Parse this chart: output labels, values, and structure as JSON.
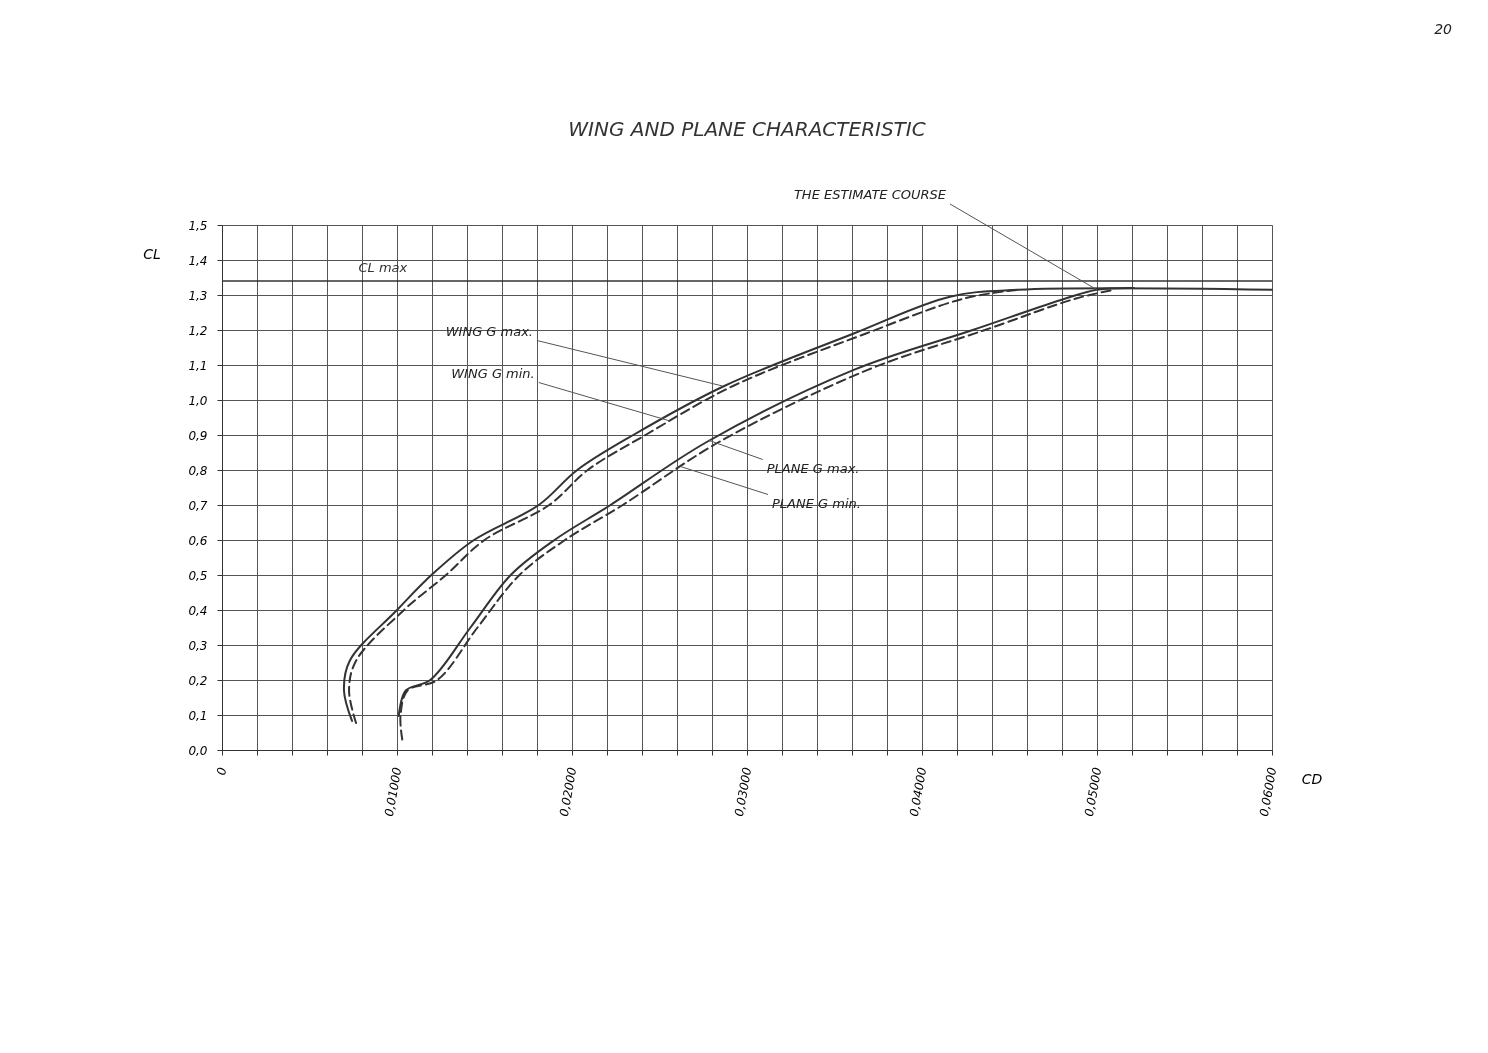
{
  "chart_data": {
    "type": "line",
    "title": "WING AND PLANE CHARACTERISTIC",
    "xlabel": "CD",
    "ylabel": "CL",
    "series": [
      {
        "color": "#333333",
        "line_style": "solid",
        "x": [
          0.00743,
          0.00697,
          0.0073,
          0.01,
          0.01206,
          0.0144,
          0.0181,
          0.0203,
          0.0235,
          0.0287,
          0.0361,
          0.0416,
          0.0455,
          0.06
        ],
        "values": [
          0.083,
          0.17,
          0.255,
          0.4,
          0.504,
          0.6,
          0.7,
          0.8,
          0.9,
          1.04,
          1.19,
          1.295,
          1.315,
          1.315
        ]
      },
      {
        "color": "#333333",
        "line_style": "dashed",
        "x": [
          0.00766,
          0.00726,
          0.00766,
          0.0104,
          0.0128,
          0.015,
          0.0187,
          0.0209,
          0.0242,
          0.0292,
          0.0368,
          0.0424,
          0.0455
        ],
        "values": [
          0.077,
          0.17,
          0.255,
          0.4,
          0.5,
          0.6,
          0.7,
          0.8,
          0.9,
          1.04,
          1.19,
          1.29,
          1.315
        ]
      },
      {
        "color": "#333333",
        "line_style": "solid",
        "x": [
          0.0101,
          0.0105,
          0.0119,
          0.0142,
          0.0165,
          0.019,
          0.0222,
          0.0277,
          0.0361,
          0.0429,
          0.0482,
          0.05,
          0.0521
        ],
        "values": [
          0.097,
          0.17,
          0.2,
          0.35,
          0.5,
          0.6,
          0.7,
          0.88,
          1.086,
          1.2,
          1.29,
          1.315,
          1.32
        ]
      },
      {
        "color": "#333333",
        "line_style": "dashed",
        "x": [
          0.0103,
          0.0102,
          0.0106,
          0.0123,
          0.0146,
          0.017,
          0.0196,
          0.0229,
          0.0284,
          0.0369,
          0.0436,
          0.0488,
          0.051
        ],
        "values": [
          0.03,
          0.097,
          0.17,
          0.2,
          0.35,
          0.5,
          0.6,
          0.7,
          0.88,
          1.086,
          1.2,
          1.29,
          1.315
        ]
      }
    ],
    "annotations": [
      {
        "text": "WING G max.",
        "x": 0.0286,
        "y": 1.04
      },
      {
        "text": "WING G min.",
        "x": 0.0256,
        "y": 0.94
      },
      {
        "text": "PLANE G max.",
        "x": 0.0278,
        "y": 0.885
      },
      {
        "text": "PLANE G min.",
        "x": 0.0262,
        "y": 0.81
      },
      {
        "text": "THE ESTIMATE COURSE",
        "x": 0.05,
        "y": 1.315
      },
      "20"
    ],
    "ref_lines": [
      {
        "axis": "y",
        "value": 1.34,
        "label": "CL max",
        "color": "#333333"
      }
    ],
    "xlim": [
      0,
      0.06
    ],
    "ylim": [
      0,
      1.5
    ],
    "xticks": [
      {
        "value": 0,
        "label": "0"
      },
      {
        "value": 0.002,
        "label": null
      },
      {
        "value": 0.004,
        "label": null
      },
      {
        "value": 0.006,
        "label": null
      },
      {
        "value": 0.008,
        "label": null
      },
      {
        "value": 0.01,
        "label": "0,01000"
      },
      {
        "value": 0.012,
        "label": null
      },
      {
        "value": 0.014,
        "label": null
      },
      {
        "value": 0.016,
        "label": null
      },
      {
        "value": 0.018,
        "label": null
      },
      {
        "value": 0.02,
        "label": "0,02000"
      },
      {
        "value": 0.022,
        "label": null
      },
      {
        "value": 0.024,
        "label": null
      },
      {
        "value": 0.026,
        "label": null
      },
      {
        "value": 0.028,
        "label": null
      },
      {
        "value": 0.03,
        "label": "0,03000"
      },
      {
        "value": 0.032,
        "label": null
      },
      {
        "value": 0.034,
        "label": null
      },
      {
        "value": 0.036,
        "label": null
      },
      {
        "value": 0.038,
        "label": null
      },
      {
        "value": 0.04,
        "label": "0,04000"
      },
      {
        "value": 0.042,
        "label": null
      },
      {
        "value": 0.044,
        "label": null
      },
      {
        "value": 0.046,
        "label": null
      },
      {
        "value": 0.048,
        "label": null
      },
      {
        "value": 0.05,
        "label": "0,05000"
      },
      {
        "value": 0.052,
        "label": null
      },
      {
        "value": 0.054,
        "label": null
      },
      {
        "value": 0.056,
        "label": null
      },
      {
        "value": 0.058,
        "label": null
      },
      {
        "value": 0.06,
        "label": "0,06000"
      }
    ],
    "yticks": [
      {
        "value": 0,
        "label": "0,0"
      },
      {
        "value": 0.1,
        "label": "0,1"
      },
      {
        "value": 0.2,
        "label": "0,2"
      },
      {
        "value": 0.3,
        "label": "0,3"
      },
      {
        "value": 0.4,
        "label": "0,4"
      },
      {
        "value": 0.5,
        "label": "0,5"
      },
      {
        "value": 0.6,
        "label": "0,6"
      },
      {
        "value": 0.7,
        "label": "0,7"
      },
      {
        "value": 0.8,
        "label": "0,8"
      },
      {
        "value": 0.9,
        "label": "0,9"
      },
      {
        "value": 1.0,
        "label": "1,0"
      },
      {
        "value": 1.1,
        "label": "1,1"
      },
      {
        "value": 1.2,
        "label": "1,2"
      },
      {
        "value": 1.3,
        "label": "1,3"
      },
      {
        "value": 1.4,
        "label": "1,4"
      },
      {
        "value": 1.5,
        "label": "1,5"
      }
    ],
    "grid": true,
    "marker": "none"
  }
}
